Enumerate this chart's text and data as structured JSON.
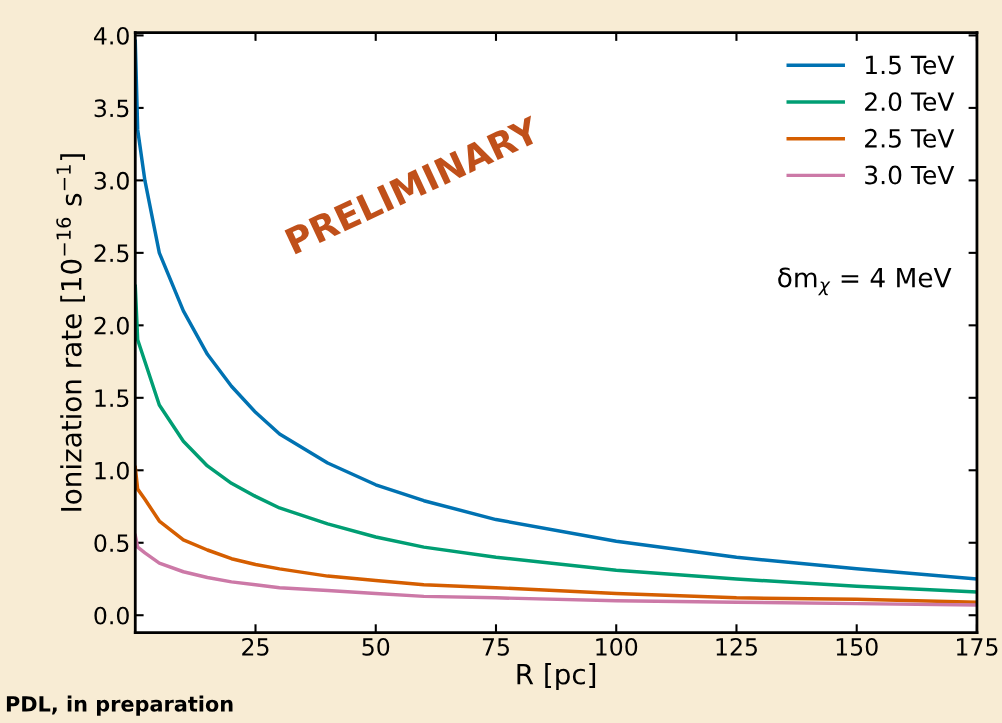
{
  "chart_data": {
    "type": "line",
    "xlabel": "R [pc]",
    "ylabel": "Ionization rate [10$^{−16}$ s$^{−1}$]",
    "x": [
      0,
      0.5,
      2,
      5,
      10,
      15,
      20,
      25,
      30,
      40,
      50,
      60,
      75,
      100,
      125,
      150,
      175
    ],
    "series": [
      {
        "name": "1.5 TeV",
        "color": "#0072b2",
        "values": [
          3.96,
          3.35,
          3.0,
          2.5,
          2.1,
          1.8,
          1.58,
          1.4,
          1.25,
          1.05,
          0.9,
          0.79,
          0.66,
          0.51,
          0.4,
          0.32,
          0.25
        ]
      },
      {
        "name": "2.0 TeV",
        "color": "#009e73",
        "values": [
          2.27,
          1.9,
          1.75,
          1.45,
          1.2,
          1.03,
          0.91,
          0.82,
          0.74,
          0.63,
          0.54,
          0.47,
          0.4,
          0.31,
          0.25,
          0.2,
          0.16
        ]
      },
      {
        "name": "2.5 TeV",
        "color": "#d55e00",
        "values": [
          1.02,
          0.87,
          0.8,
          0.65,
          0.52,
          0.45,
          0.39,
          0.35,
          0.32,
          0.27,
          0.24,
          0.21,
          0.19,
          0.15,
          0.12,
          0.11,
          0.09
        ]
      },
      {
        "name": "3.0 TeV",
        "color": "#cc79a7",
        "values": [
          0.55,
          0.47,
          0.43,
          0.36,
          0.3,
          0.26,
          0.23,
          0.21,
          0.19,
          0.17,
          0.15,
          0.13,
          0.12,
          0.1,
          0.09,
          0.08,
          0.07
        ]
      }
    ],
    "xlim": [
      0,
      175
    ],
    "xticks": [
      25,
      50,
      75,
      100,
      125,
      150,
      175
    ],
    "ylim": [
      -0.12,
      4.02
    ],
    "yticks": [
      {
        "value": 0,
        "label": "0.0"
      },
      0.5,
      {
        "value": 1,
        "label": "1.0"
      },
      1.5,
      {
        "value": 2,
        "label": "2.0"
      },
      2.5,
      {
        "value": 3,
        "label": "3.0"
      },
      3.5,
      {
        "value": 4,
        "label": "4.0"
      }
    ],
    "grid": false,
    "legend": "top right",
    "marker": "none",
    "line_style": "solid",
    "annotations": [
      "δm$_{χ}$ = 4 MeV",
      "PRELIMINARY",
      "PDL, in preparation"
    ]
  }
}
